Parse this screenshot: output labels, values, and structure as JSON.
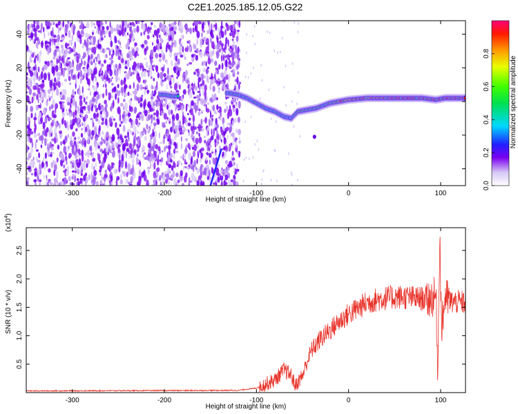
{
  "title": "C2E1.2025.185.12.05.G22",
  "chart_data": [
    {
      "type": "heatmap",
      "xlabel": "Height of straight line (km)",
      "ylabel": "Frequency (Hz)",
      "xlim": [
        -350,
        127
      ],
      "ylim": [
        -50,
        48
      ],
      "xticks": [
        -300,
        -200,
        -100,
        0,
        100
      ],
      "yticks": [
        -40,
        -20,
        0,
        20,
        40
      ],
      "colorbar": {
        "label": "Normalized spectral amplitude",
        "range": [
          0,
          1
        ],
        "ticks": [
          "0.0",
          "0.2",
          "0.4",
          "0.6",
          "0.8"
        ]
      },
      "ridge": {
        "x": [
          -200,
          -190,
          -130,
          -120,
          -110,
          -100,
          -90,
          -80,
          -70,
          -62,
          -55,
          -45,
          -35,
          -20,
          0,
          20,
          60,
          80,
          95,
          105,
          127
        ],
        "y": [
          4,
          3,
          5,
          4,
          2,
          -1,
          -4,
          -6,
          -9,
          -10,
          -6,
          -5,
          -4,
          -1,
          1,
          2,
          2,
          2,
          1,
          2,
          2
        ]
      },
      "grid": false
    },
    {
      "type": "line",
      "xlabel": "Height of straight line (km)",
      "ylabel": "SNR (10 * v/v)",
      "ylabel_multiplier": "(x10",
      "ylabel_multiplier_exp": "4",
      "ylabel_multiplier_close": ")",
      "xlim": [
        -350,
        127
      ],
      "ylim": [
        0,
        2.9
      ],
      "xticks": [
        -300,
        -200,
        -100,
        0,
        100
      ],
      "yticks": [
        "0.5",
        "1.0",
        "1.5",
        "2.0",
        "2.5"
      ],
      "color": "#e8332a",
      "trend": {
        "x": [
          -350,
          -120,
          -100,
          -80,
          -70,
          -62,
          -58,
          -50,
          -45,
          -40,
          -30,
          -20,
          -10,
          0,
          10,
          20,
          30,
          40,
          50,
          60,
          80,
          90,
          95,
          97,
          99,
          101,
          105,
          110,
          127
        ],
        "y": [
          0.03,
          0.04,
          0.08,
          0.22,
          0.4,
          0.3,
          0.12,
          0.3,
          0.55,
          0.75,
          0.95,
          1.1,
          1.25,
          1.38,
          1.48,
          1.58,
          1.63,
          1.66,
          1.68,
          1.68,
          1.65,
          1.66,
          1.7,
          0.3,
          2.9,
          1.1,
          1.7,
          1.6,
          1.58
        ]
      },
      "grid": false
    }
  ]
}
